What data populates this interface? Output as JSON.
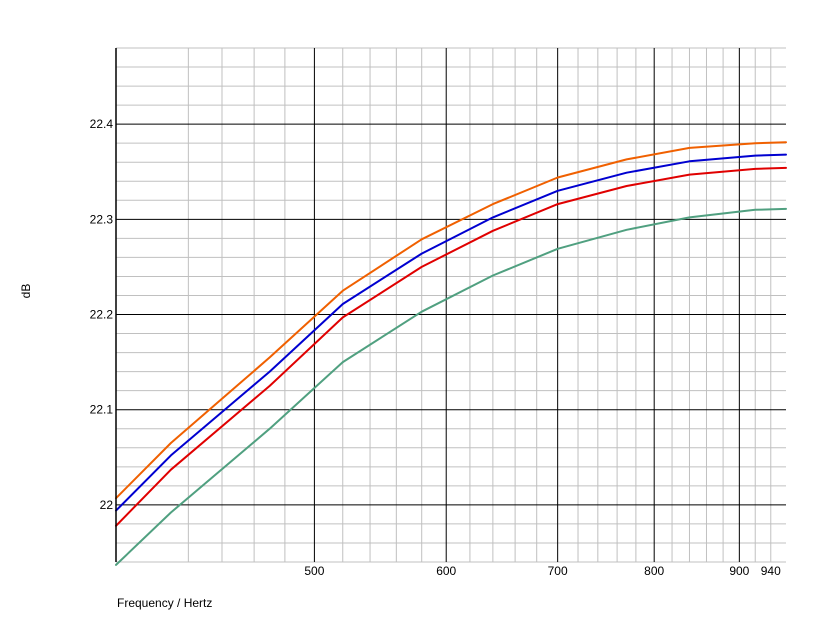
{
  "chart_data": {
    "type": "line",
    "title": "",
    "xlabel": "Frequency / Hertz",
    "ylabel": "dB",
    "x_scale": "log",
    "xlim": [
      380,
      960
    ],
    "ylim": [
      21.94,
      22.48
    ],
    "grid": true,
    "x_ticks": [
      {
        "value": 500,
        "label": "500"
      },
      {
        "value": 600,
        "label": "600"
      },
      {
        "value": 700,
        "label": "700"
      },
      {
        "value": 800,
        "label": "800"
      },
      {
        "value": 900,
        "label": "900"
      },
      {
        "value": 940,
        "label": "940"
      }
    ],
    "y_ticks": [
      {
        "value": 22.0,
        "label": "22"
      },
      {
        "value": 22.1,
        "label": "22.1"
      },
      {
        "value": 22.2,
        "label": "22.2"
      },
      {
        "value": 22.3,
        "label": "22.3"
      },
      {
        "value": 22.4,
        "label": "22.4"
      }
    ],
    "x": [
      380,
      410,
      470,
      520,
      580,
      640,
      700,
      770,
      840,
      920,
      960
    ],
    "series": [
      {
        "color": "#f06000",
        "values": [
          22.007,
          22.065,
          22.155,
          22.225,
          22.279,
          22.316,
          22.344,
          22.363,
          22.375,
          22.38,
          22.381
        ]
      },
      {
        "color": "#0000d0",
        "values": [
          21.994,
          22.052,
          22.14,
          22.211,
          22.264,
          22.302,
          22.33,
          22.349,
          22.361,
          22.367,
          22.368
        ]
      },
      {
        "color": "#e00000",
        "values": [
          21.978,
          22.037,
          22.125,
          22.197,
          22.25,
          22.288,
          22.316,
          22.335,
          22.347,
          22.353,
          22.354
        ]
      },
      {
        "color": "#50a080",
        "values": [
          21.937,
          21.992,
          22.08,
          22.15,
          22.203,
          22.241,
          22.269,
          22.289,
          22.302,
          22.31,
          22.311
        ]
      }
    ]
  }
}
